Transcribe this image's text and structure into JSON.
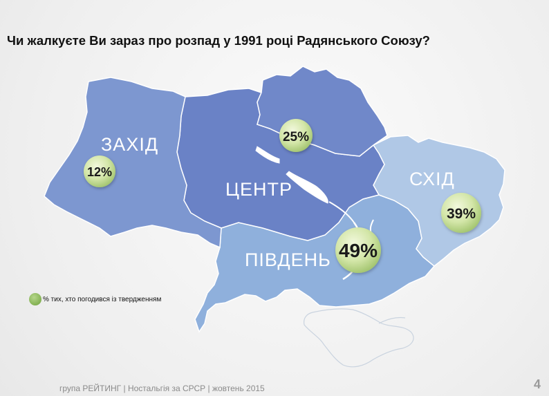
{
  "title": "Чи жалкуєте Ви зараз про розпад у 1991 році Радянського Союзу?",
  "regions": [
    {
      "name": "ЗАХІД",
      "value": "12%",
      "color": "#7d97d0"
    },
    {
      "name": "ЦЕНТР",
      "value": "25%",
      "color": "#6a82c6"
    },
    {
      "name": "СХІД",
      "value": "39%",
      "color": "#b0c8e6"
    },
    {
      "name": "ПІВДЕНЬ",
      "value": "49%",
      "color": "#8fb0dc"
    }
  ],
  "legend": {
    "label": "% тих, хто погодився із твердженням"
  },
  "footer": {
    "text": "група РЕЙТИНГ  |  Ностальгія за СРСР |  жовтень 2015",
    "page_number": "4"
  }
}
